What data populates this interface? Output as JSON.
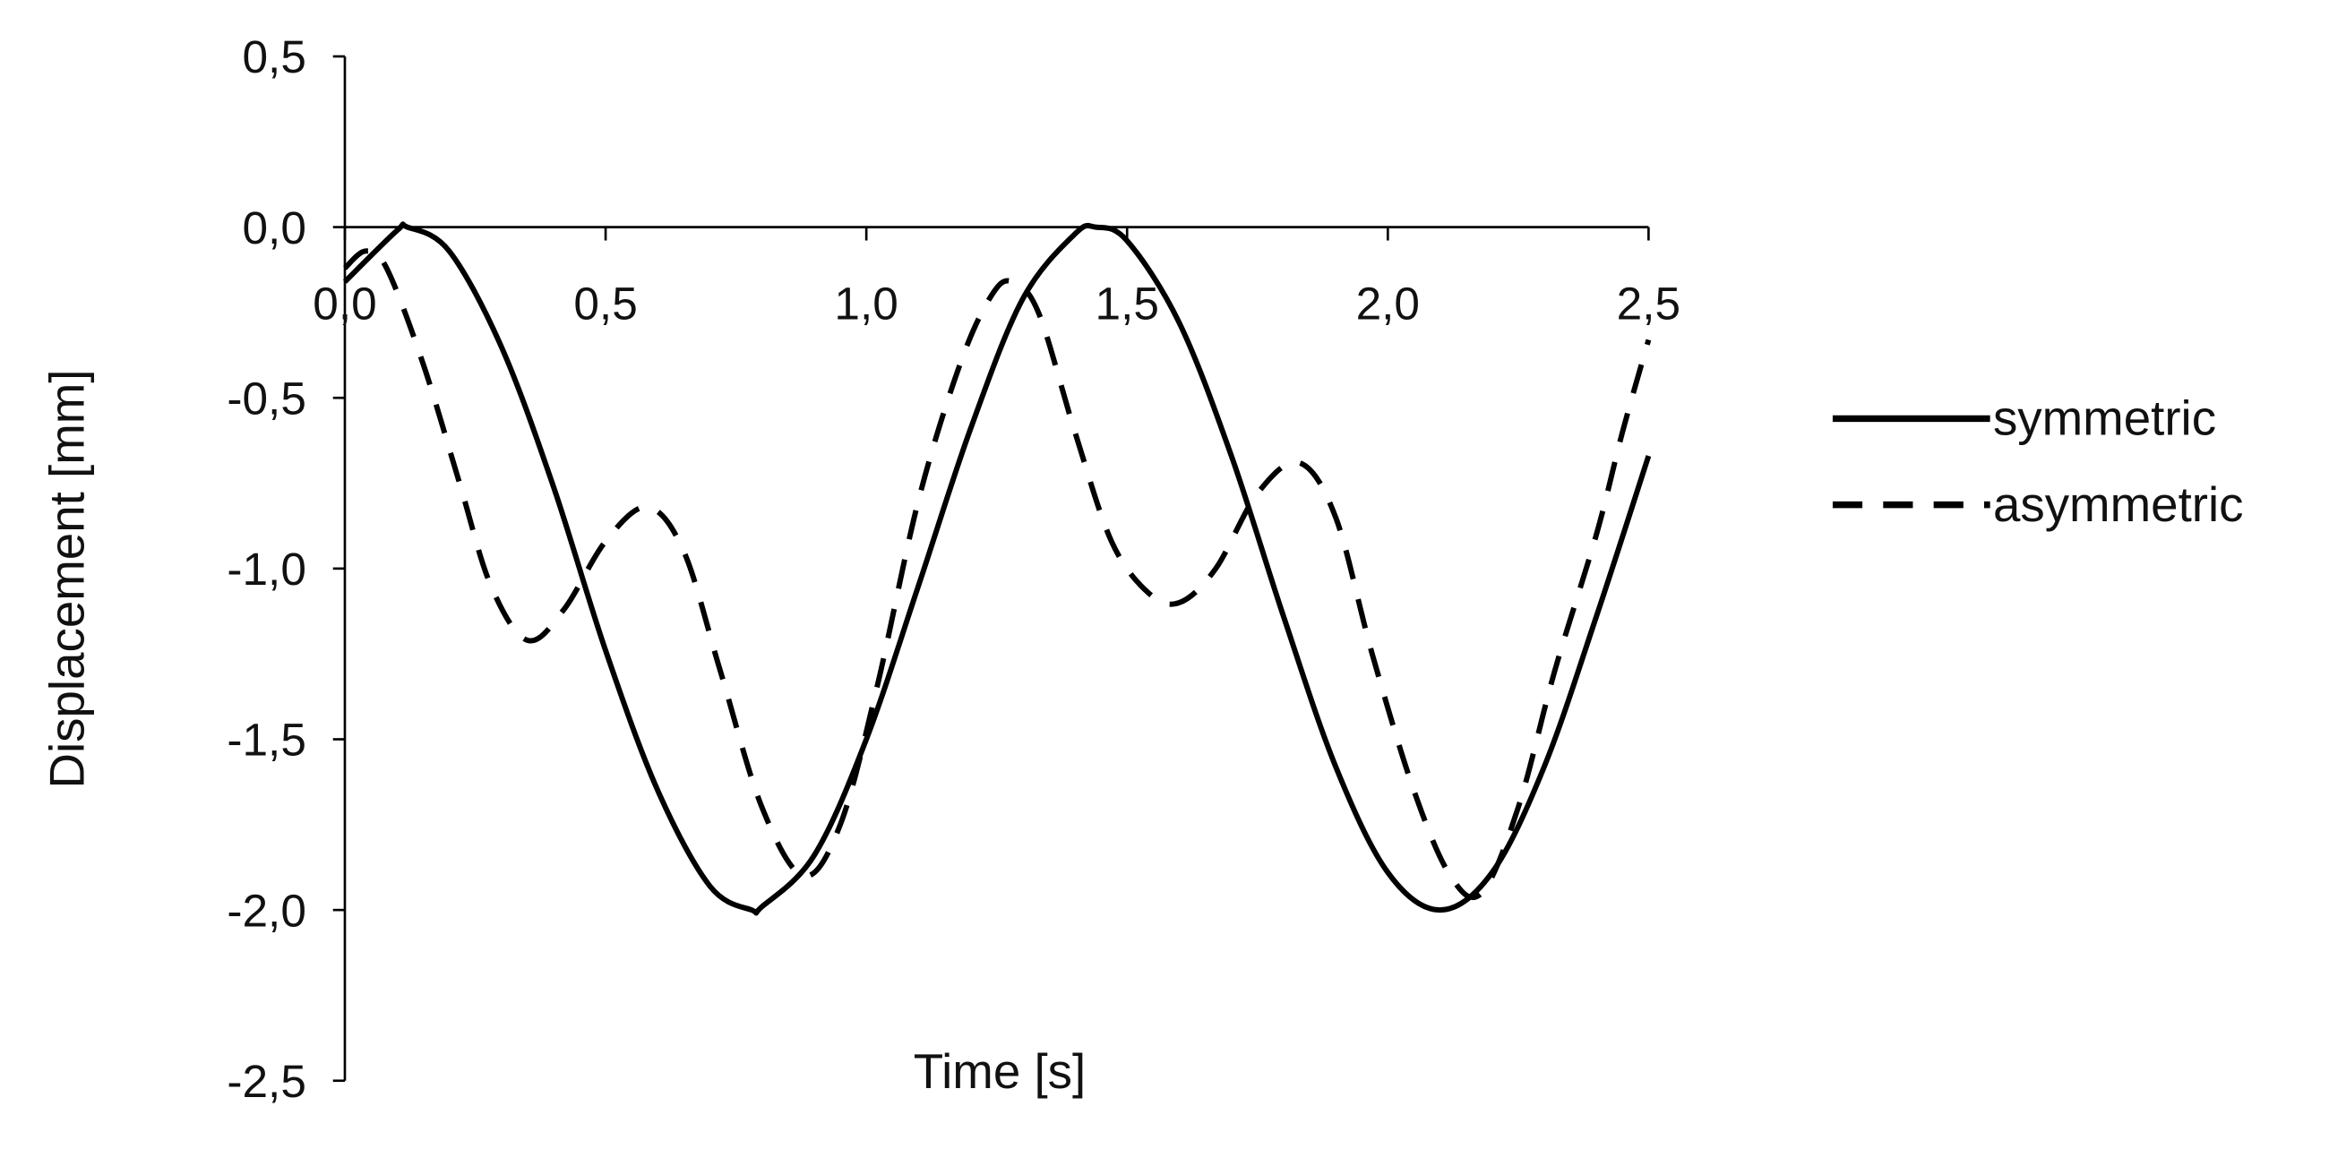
{
  "chart_data": {
    "type": "line",
    "title": "",
    "xlabel": "Time [s]",
    "ylabel": "Displacement [mm]",
    "xlim": [
      0,
      2.5
    ],
    "ylim": [
      -2.5,
      0.5
    ],
    "xticks": [
      0,
      0.5,
      1.0,
      1.5,
      2.0,
      2.5
    ],
    "xtick_labels": [
      "0,0",
      "0,5",
      "1,0",
      "1,5",
      "2,0",
      "2,5"
    ],
    "yticks": [
      0.5,
      0,
      -0.5,
      -1.0,
      -1.5,
      -2.0,
      -2.5
    ],
    "ytick_labels": [
      "0,5",
      "0,0",
      "-0,5",
      "-1,0",
      "-1,5",
      "-2,0",
      "-2,5"
    ],
    "grid": false,
    "legend_position": "right",
    "series": [
      {
        "name": "symmetric",
        "style": "solid",
        "color": "#000000",
        "x": [
          0,
          0.1,
          0.12,
          0.2,
          0.3,
          0.4,
          0.5,
          0.6,
          0.7,
          0.78,
          0.8,
          0.9,
          1.0,
          1.1,
          1.2,
          1.3,
          1.4,
          1.44,
          1.5,
          1.6,
          1.7,
          1.8,
          1.9,
          2.0,
          2.1,
          2.2,
          2.3,
          2.4,
          2.5
        ],
        "y": [
          -0.16,
          -0.01,
          0,
          -0.07,
          -0.35,
          -0.76,
          -1.24,
          -1.65,
          -1.93,
          -2.0,
          -1.99,
          -1.84,
          -1.5,
          -1.05,
          -0.59,
          -0.21,
          -0.02,
          0,
          -0.04,
          -0.28,
          -0.67,
          -1.14,
          -1.58,
          -1.89,
          -2.0,
          -1.89,
          -1.58,
          -1.14,
          -0.67
        ]
      },
      {
        "name": "asymmetric",
        "style": "dashed",
        "color": "#000000",
        "x": [
          0,
          0.04,
          0.08,
          0.15,
          0.22,
          0.28,
          0.35,
          0.42,
          0.5,
          0.58,
          0.65,
          0.72,
          0.8,
          0.88,
          0.95,
          1.02,
          1.1,
          1.18,
          1.24,
          1.28,
          1.33,
          1.4,
          1.47,
          1.54,
          1.6,
          1.67,
          1.75,
          1.83,
          1.9,
          1.97,
          2.05,
          2.12,
          2.18,
          2.25,
          2.32,
          2.4,
          2.45,
          2.5
        ],
        "y": [
          -0.12,
          -0.07,
          -0.12,
          -0.4,
          -0.75,
          -1.05,
          -1.21,
          -1.12,
          -0.92,
          -0.82,
          -0.95,
          -1.3,
          -1.7,
          -1.9,
          -1.75,
          -1.35,
          -0.8,
          -0.4,
          -0.2,
          -0.16,
          -0.25,
          -0.6,
          -0.92,
          -1.07,
          -1.1,
          -1.0,
          -0.78,
          -0.69,
          -0.85,
          -1.25,
          -1.65,
          -1.9,
          -1.95,
          -1.7,
          -1.3,
          -0.9,
          -0.6,
          -0.33
        ]
      }
    ]
  }
}
